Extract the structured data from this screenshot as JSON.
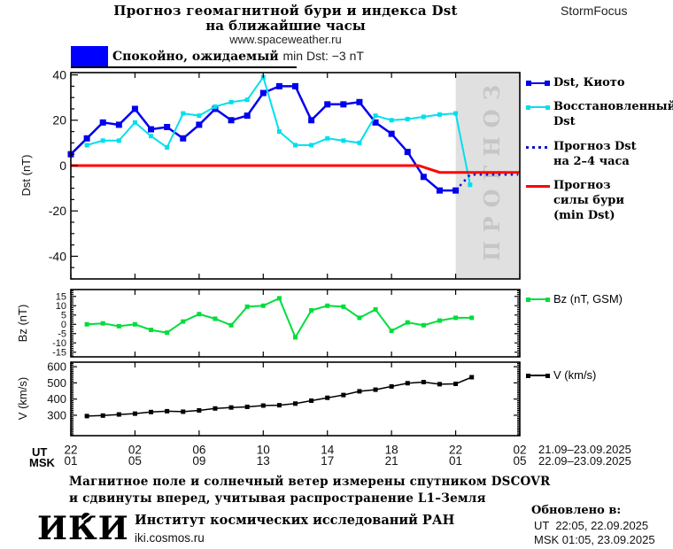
{
  "header": {
    "title_line1": "Прогноз геомагнитной бури и индекса Dst",
    "title_line2": "на ближайшие часы",
    "website": "www.spaceweather.ru",
    "brand": "StormFocus"
  },
  "status": {
    "swatch_color": "#0000ff",
    "label_cyr": "Спокойно, ожидаемый ",
    "label_lat": "min Dst: −3 nT"
  },
  "time_axis": {
    "ut_label": "UT",
    "msk_label": "MSK",
    "hours": [
      0,
      4,
      8,
      12,
      16,
      20,
      24,
      28
    ],
    "ut_ticks": [
      "22",
      "02",
      "06",
      "10",
      "14",
      "18",
      "22",
      "02"
    ],
    "msk_ticks": [
      "01",
      "05",
      "09",
      "13",
      "17",
      "21",
      "01",
      "05"
    ],
    "ut_date_range": "21.09–23.09.2025",
    "msk_date_range": "22.09–23.09.2025"
  },
  "chart_data": [
    {
      "type": "line",
      "ylabel": "Dst (nT)",
      "ylim": [
        -50,
        41
      ],
      "yticks": [
        40,
        20,
        0,
        -20,
        -40
      ],
      "y_minor_step": 5,
      "x_hours_range": [
        0,
        28
      ],
      "series": [
        {
          "name": "Dst, Киото",
          "color": "#0000ee",
          "style": "solid",
          "width": 2.5,
          "marker_size": 7,
          "x": [
            0,
            1,
            2,
            3,
            4,
            5,
            6,
            7,
            8,
            9,
            10,
            11,
            12,
            13,
            14,
            15,
            16,
            17,
            18,
            19,
            20,
            21,
            22,
            23,
            24
          ],
          "y": [
            5,
            12,
            19,
            18,
            25,
            16,
            17,
            12,
            18,
            25,
            20,
            22,
            32,
            35,
            35,
            20,
            27,
            27,
            28,
            19,
            14,
            6,
            -5,
            -11,
            -11
          ]
        },
        {
          "name": "Восстановленный\nDst",
          "color": "#00dfee",
          "style": "solid",
          "width": 2,
          "marker_size": 5,
          "x": [
            1,
            2,
            3,
            4,
            5,
            6,
            7,
            8,
            9,
            10,
            11,
            12,
            13,
            14,
            15,
            16,
            17,
            18,
            19,
            20,
            21,
            22,
            23,
            24,
            24.9
          ],
          "y": [
            9,
            11,
            11,
            19,
            13,
            8,
            23,
            22,
            26,
            28,
            29,
            39,
            15,
            9,
            9,
            12,
            11,
            10,
            22,
            20,
            20.5,
            21.5,
            22.5,
            23,
            -8.5
          ]
        },
        {
          "name": "Прогноз Dst\nна 2–4 часа",
          "color": "#1111cc",
          "style": "dotted",
          "width": 2.5,
          "marker_size": 0,
          "x": [
            24,
            24.9,
            27.9
          ],
          "y": [
            -11,
            -4,
            -4
          ]
        },
        {
          "name": "Прогноз\nсилы бури\n(min Dst)",
          "color": "#ff0000",
          "style": "solid",
          "width": 3,
          "marker_size": 0,
          "x": [
            0,
            21.7,
            23,
            28
          ],
          "y": [
            0,
            0,
            -3,
            -3
          ]
        }
      ],
      "forecast_region": {
        "start_hour": 24,
        "end_hour": 28,
        "fill": "#e0e0e0",
        "label": "ПРОГНОЗ",
        "label_color": "#c6c6c6"
      }
    },
    {
      "type": "line",
      "ylabel": "Bz (nT)",
      "ylim": [
        -17.5,
        18.7
      ],
      "yticks": [
        15,
        10,
        5,
        0,
        -5,
        -10,
        -15
      ],
      "y_minor_step": 1,
      "x_hours_range": [
        0,
        28
      ],
      "series": [
        {
          "name": "Bz (nT, GSM)",
          "color": "#00dd3c",
          "style": "solid",
          "width": 2,
          "marker_size": 5,
          "x": [
            1,
            2,
            3,
            4,
            5,
            6,
            7,
            8,
            9,
            10,
            11,
            12,
            13,
            14,
            15,
            16,
            17,
            18,
            19,
            20,
            21,
            22,
            23,
            24,
            25
          ],
          "y": [
            0,
            0.5,
            -1,
            0,
            -3,
            -4.5,
            1.5,
            5.5,
            3,
            -0.5,
            9.5,
            10,
            14,
            -7,
            7.5,
            10,
            9.5,
            3.5,
            8,
            -3.5,
            1,
            -0.5,
            2,
            3.5,
            3.5
          ]
        }
      ]
    },
    {
      "type": "line",
      "ylabel": "V (km/s)",
      "ylim": [
        174,
        628
      ],
      "yticks": [
        600,
        500,
        400,
        300
      ],
      "y_minor_step": 10,
      "x_hours_range": [
        0,
        28
      ],
      "series": [
        {
          "name": "V (km/s)",
          "color": "#000000",
          "style": "solid",
          "width": 1.5,
          "marker_size": 5,
          "x": [
            1,
            2,
            3,
            4,
            5,
            6,
            7,
            8,
            9,
            10,
            11,
            12,
            13,
            14,
            15,
            16,
            17,
            18,
            19,
            20,
            21,
            22,
            23,
            24,
            25
          ],
          "y": [
            295,
            298,
            305,
            310,
            320,
            325,
            322,
            330,
            342,
            348,
            352,
            360,
            362,
            372,
            390,
            408,
            425,
            448,
            458,
            478,
            498,
            505,
            492,
            494,
            535
          ]
        }
      ]
    }
  ],
  "footnote": {
    "line1": "Магнитное поле и солнечный ветер измерены спутником DSCOVR",
    "line2": "и сдвинуты вперед, учитывая распространение L1–Земля"
  },
  "updated": {
    "heading": "Обновлено в:",
    "ut": "UT  22:05, 22.09.2025",
    "msk": "MSK 01:05, 23.09.2025"
  },
  "footer": {
    "logo_text": "ИКИ",
    "org": "Институт космических исследований РАН",
    "site": "iki.cosmos.ru"
  }
}
